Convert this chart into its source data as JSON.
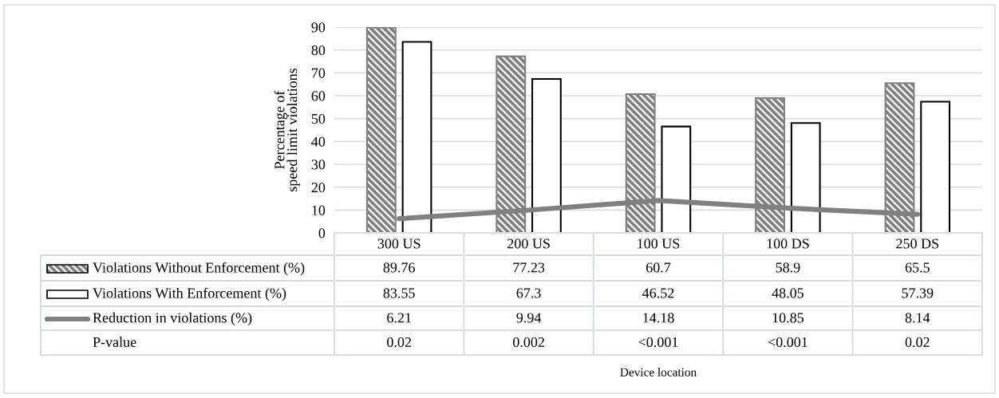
{
  "chart_data": {
    "type": "bar",
    "categories": [
      "300 US",
      "200 US",
      "100 US",
      "100 DS",
      "250 DS"
    ],
    "series": [
      {
        "name": "Violations Without Enforcement (%)",
        "color": "#808080",
        "values": [
          89.76,
          77.23,
          60.7,
          58.9,
          65.5
        ]
      },
      {
        "name": "Violations With Enforcement (%)",
        "color": "#ffffff",
        "values": [
          83.55,
          67.3,
          46.52,
          48.05,
          57.39
        ]
      },
      {
        "name": "Reduction in violations (%)",
        "type": "line",
        "color": "#808080",
        "values": [
          6.21,
          9.94,
          14.18,
          10.85,
          8.14
        ]
      }
    ],
    "ylabel": "Percentage of\nspeed limit violations",
    "ylim": [
      0,
      90
    ],
    "yticks": [
      0,
      10,
      20,
      30,
      40,
      50,
      60,
      70,
      80,
      90
    ],
    "grid": "y",
    "legend": "bottom",
    "data_labels": true,
    "marker": "none",
    "line_style": "solid",
    "annotations": [
      "P-value",
      "0.02",
      "0.002",
      "<0.001",
      "<0.001",
      "0.02",
      "Device location"
    ]
  }
}
